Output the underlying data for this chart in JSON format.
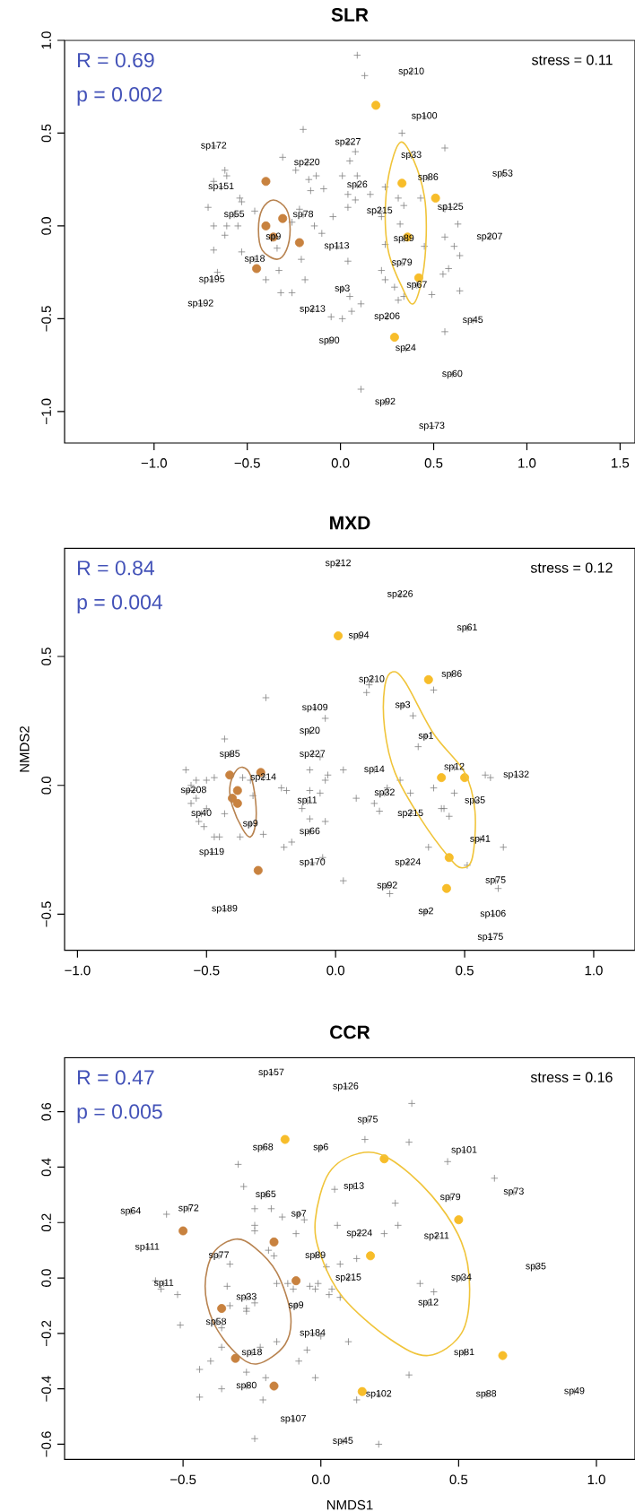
{
  "chart_data": [
    {
      "type": "scatter",
      "title": "SLR",
      "xlim": [
        -1.48,
        1.58
      ],
      "ylim": [
        -1.17,
        1.0
      ],
      "xticks": [
        {
          "value": -1.0,
          "label": "−1.0"
        },
        {
          "value": -0.5,
          "label": "−0.5"
        },
        {
          "value": 0.0,
          "label": "0.0"
        },
        {
          "value": 0.5,
          "label": "0.5"
        },
        {
          "value": 1.0,
          "label": "1.0"
        },
        {
          "value": 1.5,
          "label": "1.5"
        }
      ],
      "yticks": [
        {
          "value": -1.0,
          "label": "−1.0"
        },
        {
          "value": -0.5,
          "label": "−0.5"
        },
        {
          "value": 0.0,
          "label": "0.0"
        },
        {
          "value": 0.5,
          "label": "0.5"
        },
        {
          "value": 1.0,
          "label": "1.0"
        }
      ],
      "series": [
        {
          "type": "scatter",
          "marker": "cross",
          "color": "#808080",
          "x": [
            0.09,
            0.13,
            -0.2,
            0.33,
            0.56,
            0.08,
            -0.31,
            0.05,
            -0.62,
            -0.61,
            -0.68,
            0.01,
            0.09,
            -0.24,
            -0.13,
            -0.17,
            -0.16,
            -0.09,
            0.04,
            0.08,
            0.16,
            0.24,
            -0.54,
            -0.53,
            -0.71,
            -0.46,
            -0.22,
            0.04,
            0.31,
            0.34,
            0.43,
            0.56,
            0.63,
            -0.68,
            -0.61,
            -0.55,
            -0.26,
            -0.14,
            -0.04,
            0.22,
            0.32,
            0.56,
            -0.1,
            -0.62,
            -0.68,
            -0.53,
            -0.34,
            -0.21,
            0.04,
            0.24,
            0.45,
            0.61,
            0.64,
            0.58,
            0.55,
            0.22,
            0.24,
            -0.33,
            -0.4,
            -0.19,
            -0.32,
            -0.26,
            0.05,
            0.11,
            0.06,
            -0.05,
            0.01,
            0.29,
            0.34,
            0.31,
            0.49,
            0.64,
            0.56,
            0.11,
            -0.66
          ],
          "values": [
            0.92,
            0.81,
            0.52,
            0.5,
            0.42,
            0.4,
            0.37,
            0.35,
            0.3,
            0.27,
            0.24,
            0.27,
            0.27,
            0.3,
            0.27,
            0.25,
            0.19,
            0.2,
            0.17,
            0.14,
            0.17,
            0.21,
            0.15,
            0.13,
            0.1,
            0.08,
            0.09,
            0.1,
            0.15,
            0.11,
            0.15,
            0.09,
            0.01,
            0.0,
            0.0,
            0.0,
            0.02,
            0.0,
            0.05,
            0.05,
            0.01,
            -0.06,
            -0.04,
            -0.05,
            -0.13,
            -0.14,
            -0.12,
            -0.18,
            -0.19,
            -0.1,
            -0.11,
            -0.11,
            -0.16,
            -0.23,
            -0.26,
            -0.24,
            -0.29,
            -0.24,
            -0.29,
            -0.29,
            -0.36,
            -0.36,
            -0.38,
            -0.42,
            -0.46,
            -0.49,
            -0.5,
            -0.33,
            -0.38,
            -0.4,
            -0.37,
            -0.35,
            -0.57,
            -0.88,
            -0.25
          ]
        },
        {
          "type": "scatter",
          "marker": "circle",
          "color": "#c8823f",
          "x": [
            -0.4,
            -0.4,
            -0.31,
            -0.36,
            -0.22,
            -0.45
          ],
          "values": [
            0.24,
            0.0,
            0.04,
            -0.06,
            -0.09,
            -0.23
          ]
        },
        {
          "type": "scatter",
          "marker": "circle",
          "color": "#f7bd2a",
          "x": [
            0.19,
            0.33,
            0.51,
            0.36,
            0.42,
            0.29
          ],
          "values": [
            0.65,
            0.23,
            0.15,
            -0.06,
            -0.28,
            -0.6
          ]
        },
        {
          "type": "scatter",
          "marker": "cross",
          "color": "#808080",
          "x": [
            0.38,
            0.45,
            -0.68,
            0.04,
            0.38,
            -0.18,
            0.47,
            0.87,
            -0.64,
            0.09,
            0.59,
            -0.57,
            -0.2,
            0.21,
            -0.36,
            0.34,
            0.8,
            -0.02,
            -0.46,
            0.33,
            -0.69,
            0.41,
            0.01,
            -0.75,
            -0.15,
            0.25,
            0.71,
            -0.06,
            0.35,
            0.6,
            0.24,
            0.49
          ],
          "values": [
            0.83,
            0.59,
            0.43,
            0.45,
            0.38,
            0.34,
            0.26,
            0.28,
            0.21,
            0.22,
            0.1,
            0.06,
            0.06,
            0.08,
            -0.06,
            -0.07,
            -0.06,
            -0.11,
            -0.18,
            -0.2,
            -0.29,
            -0.32,
            -0.34,
            -0.42,
            -0.45,
            -0.49,
            -0.51,
            -0.62,
            -0.66,
            -0.8,
            -0.95,
            -1.08
          ]
        }
      ],
      "annotations": [
        "R = 0.69",
        "p = 0.002",
        "stress = 0.11",
        {
          "text": "sp210",
          "x": 0.38,
          "y": 0.83
        },
        {
          "text": "sp100",
          "x": 0.45,
          "y": 0.59
        },
        {
          "text": "sp172",
          "x": -0.68,
          "y": 0.43
        },
        {
          "text": "sp227",
          "x": 0.04,
          "y": 0.45
        },
        {
          "text": "sp33",
          "x": 0.38,
          "y": 0.38
        },
        {
          "text": "sp220",
          "x": -0.18,
          "y": 0.34
        },
        {
          "text": "sp86",
          "x": 0.47,
          "y": 0.26
        },
        {
          "text": "sp53",
          "x": 0.87,
          "y": 0.28
        },
        {
          "text": "sp151",
          "x": -0.64,
          "y": 0.21
        },
        {
          "text": "sp26",
          "x": 0.09,
          "y": 0.22
        },
        {
          "text": "sp125",
          "x": 0.59,
          "y": 0.1
        },
        {
          "text": "sp55",
          "x": -0.57,
          "y": 0.06
        },
        {
          "text": "sp78",
          "x": -0.2,
          "y": 0.06
        },
        {
          "text": "sp215",
          "x": 0.21,
          "y": 0.08
        },
        {
          "text": "sp9",
          "x": -0.36,
          "y": -0.06
        },
        {
          "text": "sp89",
          "x": 0.34,
          "y": -0.07
        },
        {
          "text": "sp207",
          "x": 0.8,
          "y": -0.06
        },
        {
          "text": "sp113",
          "x": -0.02,
          "y": -0.11
        },
        {
          "text": "sp18",
          "x": -0.46,
          "y": -0.18
        },
        {
          "text": "sp79",
          "x": 0.33,
          "y": -0.2
        },
        {
          "text": "sp195",
          "x": -0.69,
          "y": -0.29
        },
        {
          "text": "sp67",
          "x": 0.41,
          "y": -0.32
        },
        {
          "text": "sp3",
          "x": 0.01,
          "y": -0.34
        },
        {
          "text": "sp192",
          "x": -0.75,
          "y": -0.42
        },
        {
          "text": "sp213",
          "x": -0.15,
          "y": -0.45
        },
        {
          "text": "sp206",
          "x": 0.25,
          "y": -0.49
        },
        {
          "text": "sp45",
          "x": 0.71,
          "y": -0.51
        },
        {
          "text": "sp90",
          "x": -0.06,
          "y": -0.62
        },
        {
          "text": "sp24",
          "x": 0.35,
          "y": -0.66
        },
        {
          "text": "sp60",
          "x": 0.6,
          "y": -0.8
        },
        {
          "text": "sp92",
          "x": 0.24,
          "y": -0.95
        },
        {
          "text": "sp173",
          "x": 0.49,
          "y": -1.08
        }
      ]
    },
    {
      "type": "scatter",
      "title": "MXD",
      "ylabel": "NMDS2",
      "xlim": [
        -1.05,
        1.16
      ],
      "ylim": [
        -0.64,
        0.92
      ],
      "xticks": [
        {
          "value": -1.0,
          "label": "−1.0"
        },
        {
          "value": -0.5,
          "label": "−0.5"
        },
        {
          "value": 0.0,
          "label": "0.0"
        },
        {
          "value": 0.5,
          "label": "0.5"
        },
        {
          "value": 1.0,
          "label": "1.0"
        }
      ],
      "yticks": [
        {
          "value": -0.5,
          "label": "−0.5"
        },
        {
          "value": 0.0,
          "label": "0.0"
        },
        {
          "value": 0.5,
          "label": "0.5"
        }
      ],
      "series": [
        {
          "type": "scatter",
          "marker": "cross",
          "color": "#808080",
          "x": [
            -0.27,
            0.13,
            0.12,
            0.38,
            -0.04,
            0.3,
            -0.43,
            0.32,
            -0.58,
            -0.47,
            -0.54,
            -0.5,
            -0.56,
            -0.57,
            -0.54,
            -0.56,
            -0.5,
            -0.53,
            -0.51,
            -0.47,
            -0.45,
            -0.43,
            -0.37,
            -0.28,
            -0.36,
            -0.33,
            -0.32,
            -0.21,
            -0.19,
            -0.2,
            -0.17,
            -0.1,
            -0.1,
            -0.06,
            -0.03,
            -0.04,
            -0.06,
            -0.13,
            -0.1,
            -0.04,
            -0.05,
            0.03,
            0.03,
            0.08,
            0.15,
            0.17,
            0.2,
            0.25,
            0.29,
            0.38,
            0.41,
            0.42,
            0.44,
            0.46,
            0.36,
            0.51,
            0.65,
            0.58,
            0.6,
            0.63,
            0.21
          ],
          "values": [
            0.34,
            0.39,
            0.36,
            0.37,
            0.26,
            0.27,
            0.18,
            0.15,
            0.06,
            0.03,
            0.02,
            0.02,
            0.0,
            -0.02,
            -0.05,
            -0.07,
            -0.09,
            -0.14,
            -0.16,
            -0.2,
            -0.2,
            -0.11,
            -0.2,
            -0.19,
            0.03,
            0.02,
            -0.04,
            -0.01,
            -0.02,
            -0.24,
            -0.22,
            -0.02,
            0.06,
            0.11,
            0.04,
            0.02,
            -0.03,
            -0.09,
            -0.13,
            -0.14,
            -0.28,
            0.06,
            -0.37,
            -0.05,
            -0.07,
            -0.1,
            -0.01,
            0.02,
            -0.03,
            -0.01,
            -0.09,
            -0.09,
            -0.12,
            -0.03,
            -0.24,
            -0.31,
            -0.24,
            0.04,
            0.03,
            -0.4,
            -0.42
          ]
        },
        {
          "type": "scatter",
          "marker": "circle",
          "color": "#c8823f",
          "x": [
            -0.41,
            -0.29,
            -0.38,
            -0.4,
            -0.38,
            -0.3
          ],
          "values": [
            0.04,
            0.05,
            -0.02,
            -0.05,
            -0.07,
            -0.33
          ]
        },
        {
          "type": "scatter",
          "marker": "circle",
          "color": "#f7bd2a",
          "x": [
            0.01,
            0.36,
            0.41,
            0.5,
            0.44,
            0.43
          ],
          "values": [
            0.58,
            0.41,
            0.03,
            0.03,
            -0.28,
            -0.4
          ]
        },
        {
          "type": "scatter",
          "marker": "cross",
          "color": "#808080",
          "x": [
            0.01,
            0.25,
            0.51,
            0.09,
            0.14,
            0.45,
            -0.08,
            0.26,
            -0.1,
            0.35,
            -0.41,
            -0.09,
            0.15,
            0.46,
            0.7,
            -0.28,
            -0.55,
            0.19,
            -0.11,
            0.54,
            -0.52,
            0.29,
            -0.33,
            -0.1,
            0.56,
            -0.48,
            0.28,
            -0.09,
            0.62,
            0.2,
            -0.43,
            0.35,
            0.61,
            0.6
          ],
          "values": [
            0.86,
            0.74,
            0.61,
            0.58,
            0.41,
            0.43,
            0.3,
            0.31,
            0.21,
            0.19,
            0.12,
            0.12,
            0.06,
            0.07,
            0.04,
            0.03,
            -0.02,
            -0.03,
            -0.06,
            -0.06,
            -0.11,
            -0.11,
            -0.15,
            -0.18,
            -0.21,
            -0.26,
            -0.3,
            -0.3,
            -0.37,
            -0.39,
            -0.48,
            -0.49,
            -0.5,
            -0.59
          ]
        }
      ],
      "annotations": [
        "R = 0.84",
        "p = 0.004",
        "stress = 0.12",
        {
          "text": "sp212",
          "x": 0.01,
          "y": 0.86
        },
        {
          "text": "sp226",
          "x": 0.25,
          "y": 0.74
        },
        {
          "text": "sp61",
          "x": 0.51,
          "y": 0.61
        },
        {
          "text": "sp94",
          "x": 0.09,
          "y": 0.58
        },
        {
          "text": "sp210",
          "x": 0.14,
          "y": 0.41
        },
        {
          "text": "sp86",
          "x": 0.45,
          "y": 0.43
        },
        {
          "text": "sp109",
          "x": -0.08,
          "y": 0.3
        },
        {
          "text": "sp3",
          "x": 0.26,
          "y": 0.31
        },
        {
          "text": "sp20",
          "x": -0.1,
          "y": 0.21
        },
        {
          "text": "sp1",
          "x": 0.35,
          "y": 0.19
        },
        {
          "text": "sp85",
          "x": -0.41,
          "y": 0.12
        },
        {
          "text": "sp227",
          "x": -0.09,
          "y": 0.12
        },
        {
          "text": "sp14",
          "x": 0.15,
          "y": 0.06
        },
        {
          "text": "sp12",
          "x": 0.46,
          "y": 0.07
        },
        {
          "text": "sp132",
          "x": 0.7,
          "y": 0.04
        },
        {
          "text": "sp214",
          "x": -0.28,
          "y": 0.03
        },
        {
          "text": "sp208",
          "x": -0.55,
          "y": -0.02
        },
        {
          "text": "sp32",
          "x": 0.19,
          "y": -0.03
        },
        {
          "text": "sp11",
          "x": -0.11,
          "y": -0.06
        },
        {
          "text": "sp35",
          "x": 0.54,
          "y": -0.06
        },
        {
          "text": "sp40",
          "x": -0.52,
          "y": -0.11
        },
        {
          "text": "sp215",
          "x": 0.29,
          "y": -0.11
        },
        {
          "text": "sp9",
          "x": -0.33,
          "y": -0.15
        },
        {
          "text": "sp66",
          "x": -0.1,
          "y": -0.18
        },
        {
          "text": "sp41",
          "x": 0.56,
          "y": -0.21
        },
        {
          "text": "sp119",
          "x": -0.48,
          "y": -0.26
        },
        {
          "text": "sp224",
          "x": 0.28,
          "y": -0.3
        },
        {
          "text": "sp170",
          "x": -0.09,
          "y": -0.3
        },
        {
          "text": "sp75",
          "x": 0.62,
          "y": -0.37
        },
        {
          "text": "sp92",
          "x": 0.2,
          "y": -0.39
        },
        {
          "text": "sp189",
          "x": -0.43,
          "y": -0.48
        },
        {
          "text": "sp2",
          "x": 0.35,
          "y": -0.49
        },
        {
          "text": "sp106",
          "x": 0.61,
          "y": -0.5
        },
        {
          "text": "sp175",
          "x": 0.6,
          "y": -0.59
        }
      ]
    },
    {
      "type": "scatter",
      "title": "CCR",
      "xlabel": "NMDS1",
      "xlim": [
        -0.93,
        1.14
      ],
      "ylim": [
        -0.655,
        0.795
      ],
      "xticks": [
        {
          "value": -0.5,
          "label": "−0.5"
        },
        {
          "value": 0.0,
          "label": "0.0"
        },
        {
          "value": 0.5,
          "label": "0.5"
        },
        {
          "value": 1.0,
          "label": "1.0"
        }
      ],
      "yticks": [
        {
          "value": -0.6,
          "label": "−0.6"
        },
        {
          "value": -0.4,
          "label": "−0.4"
        },
        {
          "value": -0.2,
          "label": "−0.2"
        },
        {
          "value": 0.0,
          "label": "0.0"
        },
        {
          "value": 0.2,
          "label": "0.2"
        },
        {
          "value": 0.4,
          "label": "0.4"
        },
        {
          "value": 0.6,
          "label": "0.6"
        }
      ],
      "series": [
        {
          "type": "scatter",
          "marker": "cross",
          "color": "#808080",
          "x": [
            0.33,
            0.16,
            0.32,
            0.46,
            0.63,
            -0.3,
            -0.28,
            0.05,
            0.27,
            -0.56,
            -0.24,
            -0.18,
            -0.14,
            -0.06,
            -0.24,
            -0.24,
            -0.09,
            0.06,
            0.28,
            0.23,
            -0.19,
            -0.17,
            -0.33,
            0.02,
            0.07,
            0.13,
            -0.6,
            -0.58,
            -0.52,
            -0.51,
            -0.34,
            -0.33,
            -0.27,
            -0.27,
            -0.24,
            -0.16,
            -0.12,
            -0.1,
            -0.04,
            -0.02,
            -0.01,
            0.04,
            0.03,
            0.07,
            0.36,
            0.41,
            -0.36,
            -0.36,
            -0.22,
            -0.16,
            -0.05,
            -0.08,
            0.0,
            0.1,
            -0.4,
            -0.44,
            -0.27,
            -0.2,
            -0.36,
            -0.02,
            -0.44,
            -0.21,
            0.13,
            0.32,
            -0.24,
            0.21
          ],
          "values": [
            0.63,
            0.5,
            0.49,
            0.42,
            0.36,
            0.41,
            0.33,
            0.32,
            0.27,
            0.23,
            0.25,
            0.25,
            0.22,
            0.21,
            0.19,
            0.17,
            0.16,
            0.19,
            0.19,
            0.16,
            0.1,
            0.08,
            0.05,
            0.04,
            0.05,
            0.07,
            -0.01,
            -0.04,
            -0.06,
            -0.17,
            -0.03,
            -0.1,
            -0.11,
            -0.12,
            -0.09,
            -0.02,
            -0.02,
            -0.04,
            -0.03,
            -0.04,
            -0.02,
            -0.04,
            -0.06,
            -0.07,
            -0.02,
            -0.05,
            -0.18,
            -0.25,
            -0.25,
            -0.23,
            -0.26,
            -0.3,
            -0.21,
            -0.23,
            -0.3,
            -0.33,
            -0.34,
            -0.36,
            -0.4,
            -0.36,
            -0.43,
            -0.44,
            -0.44,
            -0.35,
            -0.58,
            -0.6
          ]
        },
        {
          "type": "scatter",
          "marker": "circle",
          "color": "#c8823f",
          "x": [
            -0.5,
            -0.17,
            -0.09,
            -0.36,
            -0.31,
            -0.17
          ],
          "values": [
            0.17,
            0.13,
            -0.01,
            -0.11,
            -0.29,
            -0.39
          ]
        },
        {
          "type": "scatter",
          "marker": "circle",
          "color": "#f7bd2a",
          "x": [
            -0.13,
            0.23,
            0.5,
            0.18,
            0.66,
            0.15
          ],
          "values": [
            0.5,
            0.43,
            0.21,
            0.08,
            -0.28,
            -0.41
          ]
        },
        {
          "type": "scatter",
          "marker": "cross",
          "color": "#808080",
          "x": [
            -0.18,
            0.09,
            0.17,
            -0.21,
            0.0,
            0.52,
            0.12,
            0.47,
            0.7,
            -0.2,
            -0.69,
            -0.48,
            -0.08,
            0.14,
            0.42,
            -0.63,
            -0.37,
            -0.02,
            0.78,
            -0.57,
            0.1,
            0.51,
            -0.27,
            -0.09,
            0.39,
            -0.38,
            -0.03,
            0.52,
            -0.25,
            -0.27,
            0.21,
            0.6,
            0.92,
            -0.1,
            0.08
          ],
          "values": [
            0.74,
            0.69,
            0.57,
            0.47,
            0.47,
            0.46,
            0.33,
            0.29,
            0.31,
            0.3,
            0.24,
            0.25,
            0.23,
            0.16,
            0.15,
            0.11,
            0.08,
            0.08,
            0.04,
            -0.02,
            0.0,
            0.0,
            -0.07,
            -0.1,
            -0.09,
            -0.16,
            -0.2,
            -0.27,
            -0.27,
            -0.39,
            -0.42,
            -0.42,
            -0.41,
            -0.51,
            -0.59
          ]
        }
      ],
      "annotations": [
        "R = 0.47",
        "p = 0.005",
        "stress = 0.16",
        {
          "text": "sp157",
          "x": -0.18,
          "y": 0.74
        },
        {
          "text": "sp126",
          "x": 0.09,
          "y": 0.69
        },
        {
          "text": "sp75",
          "x": 0.17,
          "y": 0.57
        },
        {
          "text": "sp68",
          "x": -0.21,
          "y": 0.47
        },
        {
          "text": "sp6",
          "x": 0.0,
          "y": 0.47
        },
        {
          "text": "sp101",
          "x": 0.52,
          "y": 0.46
        },
        {
          "text": "sp13",
          "x": 0.12,
          "y": 0.33
        },
        {
          "text": "sp79",
          "x": 0.47,
          "y": 0.29
        },
        {
          "text": "sp73",
          "x": 0.7,
          "y": 0.31
        },
        {
          "text": "sp65",
          "x": -0.2,
          "y": 0.3
        },
        {
          "text": "sp64",
          "x": -0.69,
          "y": 0.24
        },
        {
          "text": "sp72",
          "x": -0.48,
          "y": 0.25
        },
        {
          "text": "sp7",
          "x": -0.08,
          "y": 0.23
        },
        {
          "text": "sp224",
          "x": 0.14,
          "y": 0.16
        },
        {
          "text": "sp211",
          "x": 0.42,
          "y": 0.15
        },
        {
          "text": "sp111",
          "x": -0.63,
          "y": 0.11
        },
        {
          "text": "sp77",
          "x": -0.37,
          "y": 0.08
        },
        {
          "text": "sp89",
          "x": -0.02,
          "y": 0.08
        },
        {
          "text": "sp35",
          "x": 0.78,
          "y": 0.04
        },
        {
          "text": "sp11",
          "x": -0.57,
          "y": -0.02
        },
        {
          "text": "sp215",
          "x": 0.1,
          "y": 0.0
        },
        {
          "text": "sp34",
          "x": 0.51,
          "y": 0.0
        },
        {
          "text": "sp33",
          "x": -0.27,
          "y": -0.07
        },
        {
          "text": "sp9",
          "x": -0.09,
          "y": -0.1
        },
        {
          "text": "sp12",
          "x": 0.39,
          "y": -0.09
        },
        {
          "text": "sp58",
          "x": -0.38,
          "y": -0.16
        },
        {
          "text": "sp184",
          "x": -0.03,
          "y": -0.2
        },
        {
          "text": "sp81",
          "x": 0.52,
          "y": -0.27
        },
        {
          "text": "sp18",
          "x": -0.25,
          "y": -0.27
        },
        {
          "text": "sp80",
          "x": -0.27,
          "y": -0.39
        },
        {
          "text": "sp102",
          "x": 0.21,
          "y": -0.42
        },
        {
          "text": "sp88",
          "x": 0.6,
          "y": -0.42
        },
        {
          "text": "sp49",
          "x": 0.92,
          "y": -0.41
        },
        {
          "text": "sp107",
          "x": -0.1,
          "y": -0.51
        },
        {
          "text": "sp45",
          "x": 0.08,
          "y": -0.59
        }
      ]
    }
  ]
}
